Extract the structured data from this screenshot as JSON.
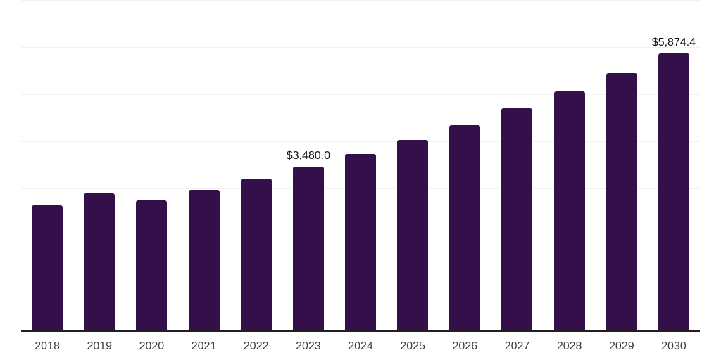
{
  "chart_data": {
    "type": "bar",
    "title": "",
    "xlabel": "",
    "ylabel": "",
    "categories": [
      "2018",
      "2019",
      "2020",
      "2021",
      "2022",
      "2023",
      "2024",
      "2025",
      "2026",
      "2027",
      "2028",
      "2029",
      "2030"
    ],
    "values": [
      2655,
      2905,
      2755,
      2980,
      3230,
      3480,
      3750,
      4050,
      4365,
      4710,
      5075,
      5465,
      5874.4
    ],
    "data_labels": [
      null,
      null,
      null,
      null,
      null,
      "$3,480.0",
      null,
      null,
      null,
      null,
      null,
      null,
      "$5,874.4"
    ],
    "ylim": [
      0,
      7000
    ],
    "grid_step": 1000,
    "grid_visible": true,
    "legend_visible": false,
    "colors": {
      "bar": "#33104A",
      "gridline": "#f2f2f2",
      "axis_line": "#1f1f1f",
      "tick_label": "#3d3d3d",
      "data_label": "#111111",
      "background": "#ffffff"
    }
  }
}
